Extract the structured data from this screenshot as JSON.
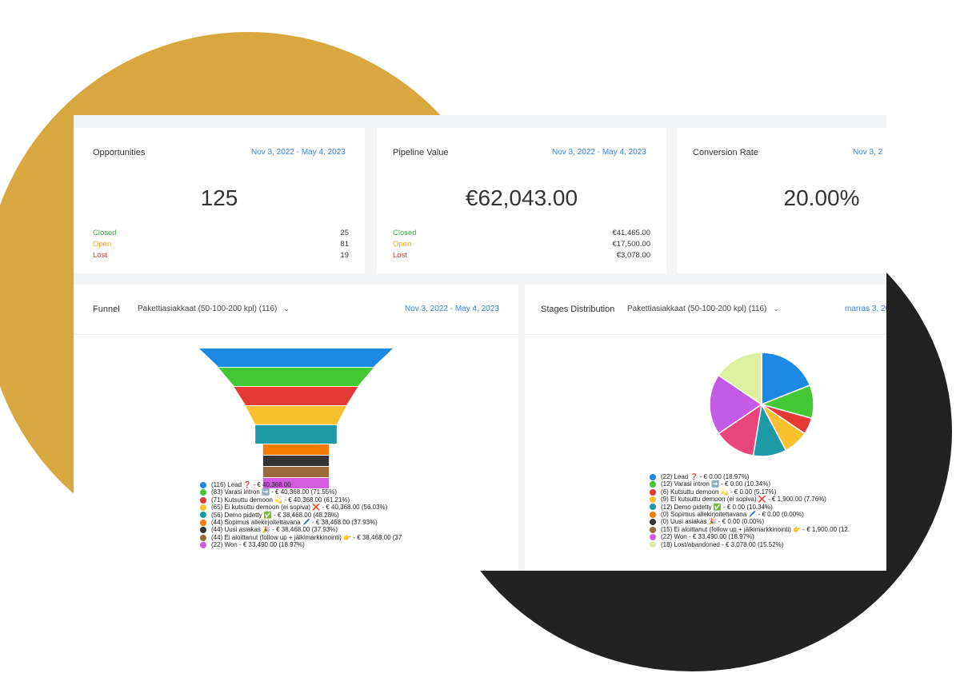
{
  "cards": [
    {
      "title": "Opportunities",
      "date": "Nov 3, 2022 - May 4, 2023",
      "value": "125",
      "rows": [
        {
          "label": "Closed",
          "value": "25",
          "color": "#3bb54a"
        },
        {
          "label": "Open",
          "value": "81",
          "color": "#f5a623"
        },
        {
          "label": "Lost",
          "value": "19",
          "color": "#e53935"
        }
      ]
    },
    {
      "title": "Pipeline Value",
      "date": "Nov 3, 2022 - May 4, 2023",
      "value": "€62,043.00",
      "rows": [
        {
          "label": "Closed",
          "value": "€41,465.00",
          "color": "#3bb54a"
        },
        {
          "label": "Open",
          "value": "€17,500.00",
          "color": "#f5a623"
        },
        {
          "label": "Lost",
          "value": "€3,078.00",
          "color": "#e53935"
        }
      ]
    },
    {
      "title": "Conversion Rate",
      "date": "Nov 3, 2",
      "value": "20.00%"
    }
  ],
  "funnel": {
    "title": "Funnel",
    "select": "Pakettiasiakkaat (50-100-200 kpl) (116)",
    "date": "Nov 3, 2022 - May 4, 2023",
    "legend": [
      {
        "text": "(116) Lead ❓ - € 40,368.00",
        "color": "#1e88e5"
      },
      {
        "text": "(83) Varasi intron ➡️ - € 40,368.00 (71.55%)",
        "color": "#43c734"
      },
      {
        "text": "(71) Kutsuttu demoon 💫 - € 40,368.00 (61.21%)",
        "color": "#e53935"
      },
      {
        "text": "(65) Ei kutsuttu demoon (ei sopiva) ❌ - € 40,368.00 (56.03%)",
        "color": "#fbc02d"
      },
      {
        "text": "(56) Demo pidetty ✅ - € 38,468.00 (48.28%)",
        "color": "#1e9aa6"
      },
      {
        "text": "(44) Sopimus allekirjoitettavana 🖊️ - € 38,468.00 (37.93%)",
        "color": "#f57c00"
      },
      {
        "text": "(44) Uusi asiakas 🎉 - € 38,468.00 (37.93%)",
        "color": "#333333"
      },
      {
        "text": "(44) Ei aloittanut (follow up + jälkimarkkinointi) 👉 - € 38,468.00 (37",
        "color": "#9c6b3c"
      },
      {
        "text": "(22) Won - € 33,490.00 (18.97%)",
        "color": "#d35be0"
      }
    ]
  },
  "stages": {
    "title": "Stages Distribution",
    "select": "Pakettiasiakkaat (50-100-200 kpl) (116)",
    "date": "marras 3, 20",
    "legend": [
      {
        "text": "(22) Lead ❓ - € 0.00 (18.97%)",
        "color": "#1e88e5"
      },
      {
        "text": "(12) Varasi intron ➡️ - € 0.00 (10.34%)",
        "color": "#43c734"
      },
      {
        "text": "(6) Kutsuttu demoon 💫 - € 0.00 (5.17%)",
        "color": "#e53935"
      },
      {
        "text": "(9) Ei kutsuttu demoon (ei sopiva) ❌ - € 1,900.00 (7.76%)",
        "color": "#fbc02d"
      },
      {
        "text": "(12) Demo pidetty ✅ - € 0.00 (10.34%)",
        "color": "#1e9aa6"
      },
      {
        "text": "(0) Sopimus allekirjoitettavana 🖊️ - € 0.00 (0.00%)",
        "color": "#f57c00"
      },
      {
        "text": "(0) Uusi asiakas 🎉 - € 0.00 (0.00%)",
        "color": "#333333"
      },
      {
        "text": "(15) Ei aloittanut (follow up + jälkimarkkinointi) 👉 - € 1,900.00 (12.",
        "color": "#9c6b3c"
      },
      {
        "text": "(22) Won - € 33,490.00 (18.97%)",
        "color": "#d35be0"
      },
      {
        "text": "(18) Lost/abandoned - € 3,078.00 (15.52%)",
        "color": "#dcf0a0"
      }
    ]
  },
  "chart_data": [
    {
      "type": "bar",
      "title": "Funnel",
      "categories": [
        "Lead",
        "Varasi intron",
        "Kutsuttu demoon",
        "Ei kutsuttu demoon (ei sopiva)",
        "Demo pidetty",
        "Sopimus allekirjoitettavana",
        "Uusi asiakas",
        "Ei aloittanut (follow up + jälkimarkkinointi)",
        "Won"
      ],
      "values": [
        116,
        83,
        71,
        65,
        56,
        44,
        44,
        44,
        22
      ],
      "colors": [
        "#1e88e5",
        "#43c734",
        "#e53935",
        "#fbc02d",
        "#1e9aa6",
        "#f57c00",
        "#333333",
        "#9c6b3c",
        "#d35be0"
      ]
    },
    {
      "type": "pie",
      "title": "Stages Distribution",
      "categories": [
        "Lead",
        "Varasi intron",
        "Kutsuttu demoon",
        "Ei kutsuttu demoon (ei sopiva)",
        "Demo pidetty",
        "Sopimus allekirjoitettavana",
        "Uusi asiakas",
        "Ei aloittanut (follow up + jälkimarkkinointi)",
        "Won",
        "Lost/abandoned"
      ],
      "values": [
        22,
        12,
        6,
        9,
        12,
        0,
        0,
        15,
        22,
        18
      ],
      "colors": [
        "#1e88e5",
        "#43c734",
        "#e53935",
        "#fbc02d",
        "#1e9aa6",
        "#f57c00",
        "#333333",
        "#e8457c",
        "#c35be6",
        "#dcf0a0"
      ]
    }
  ]
}
